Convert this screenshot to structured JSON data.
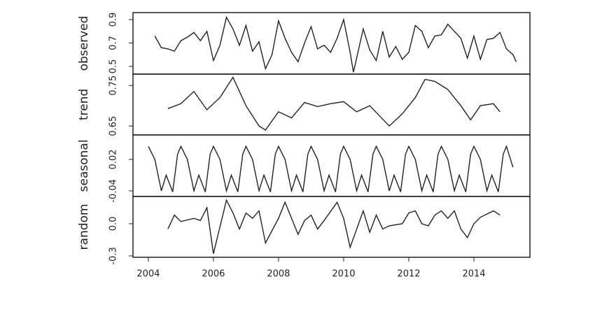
{
  "chart_data": [
    {
      "type": "line",
      "ylabel": "observed",
      "color": "#222",
      "xlim": [
        2003.53,
        2015.72
      ],
      "ylim": [
        0.434,
        0.96
      ],
      "yticks": [
        0.5,
        0.7,
        0.9
      ],
      "x": [
        2004.2,
        2004.4,
        2004.6,
        2004.8,
        2005.0,
        2005.2,
        2005.4,
        2005.6,
        2005.8,
        2006.0,
        2006.2,
        2006.4,
        2006.6,
        2006.8,
        2007.0,
        2007.2,
        2007.4,
        2007.6,
        2007.8,
        2008.0,
        2008.2,
        2008.4,
        2008.6,
        2008.8,
        2009.0,
        2009.2,
        2009.4,
        2009.6,
        2009.8,
        2010.0,
        2010.2,
        2010.3,
        2010.6,
        2010.8,
        2011.0,
        2011.2,
        2011.4,
        2011.6,
        2011.8,
        2012.0,
        2012.2,
        2012.4,
        2012.6,
        2012.8,
        2013.0,
        2013.2,
        2013.4,
        2013.6,
        2013.8,
        2014.0,
        2014.2,
        2014.4,
        2014.6,
        2014.8,
        2015.0,
        2015.2,
        2015.3
      ],
      "values": [
        0.76,
        0.66,
        0.65,
        0.63,
        0.72,
        0.75,
        0.79,
        0.72,
        0.8,
        0.55,
        0.68,
        0.92,
        0.82,
        0.68,
        0.85,
        0.63,
        0.71,
        0.48,
        0.6,
        0.89,
        0.74,
        0.62,
        0.54,
        0.7,
        0.84,
        0.65,
        0.68,
        0.62,
        0.74,
        0.9,
        0.62,
        0.45,
        0.82,
        0.64,
        0.55,
        0.8,
        0.58,
        0.67,
        0.56,
        0.62,
        0.85,
        0.8,
        0.66,
        0.76,
        0.77,
        0.86,
        0.8,
        0.74,
        0.57,
        0.76,
        0.56,
        0.73,
        0.74,
        0.79,
        0.65,
        0.6,
        0.54
      ]
    },
    {
      "type": "line",
      "ylabel": "trend",
      "color": "#222",
      "xlim": [
        2003.53,
        2015.72
      ],
      "ylim": [
        0.628,
        0.778
      ],
      "yticks": [
        0.65,
        0.75
      ],
      "x": [
        2004.6,
        2005.0,
        2005.4,
        2005.8,
        2006.2,
        2006.6,
        2007.0,
        2007.4,
        2007.6,
        2008.0,
        2008.4,
        2008.8,
        2009.2,
        2009.6,
        2010.0,
        2010.4,
        2010.8,
        2011.4,
        2011.8,
        2012.2,
        2012.5,
        2012.8,
        2013.2,
        2013.6,
        2013.9,
        2014.2,
        2014.6,
        2014.8
      ],
      "values": [
        0.693,
        0.705,
        0.735,
        0.69,
        0.72,
        0.77,
        0.7,
        0.65,
        0.64,
        0.685,
        0.67,
        0.708,
        0.698,
        0.705,
        0.71,
        0.685,
        0.7,
        0.65,
        0.68,
        0.72,
        0.765,
        0.76,
        0.74,
        0.7,
        0.665,
        0.7,
        0.705,
        0.685
      ]
    },
    {
      "type": "line",
      "ylabel": "seasonal",
      "color": "#222",
      "xlim": [
        2003.53,
        2015.72
      ],
      "ylim": [
        -0.0507,
        0.0667
      ],
      "yticks": [
        -0.04,
        0.02
      ],
      "x": [
        2004.0,
        2004.2,
        2004.4,
        2004.55,
        2004.75,
        2004.9,
        2005.0,
        2005.2,
        2005.4,
        2005.55,
        2005.75,
        2005.9,
        2006.0,
        2006.2,
        2006.4,
        2006.55,
        2006.75,
        2006.9,
        2007.0,
        2007.2,
        2007.4,
        2007.55,
        2007.75,
        2007.9,
        2008.0,
        2008.2,
        2008.4,
        2008.55,
        2008.75,
        2008.9,
        2009.0,
        2009.2,
        2009.4,
        2009.55,
        2009.75,
        2009.9,
        2010.0,
        2010.2,
        2010.4,
        2010.55,
        2010.75,
        2010.9,
        2011.0,
        2011.2,
        2011.4,
        2011.55,
        2011.75,
        2011.9,
        2012.0,
        2012.2,
        2012.4,
        2012.55,
        2012.75,
        2012.9,
        2013.0,
        2013.2,
        2013.4,
        2013.55,
        2013.75,
        2013.9,
        2014.0,
        2014.2,
        2014.4,
        2014.55,
        2014.75,
        2014.9,
        2015.0,
        2015.2
      ],
      "values": [
        0.045,
        0.02,
        -0.04,
        -0.01,
        -0.042,
        0.03,
        0.045,
        0.02,
        -0.04,
        -0.01,
        -0.042,
        0.03,
        0.045,
        0.02,
        -0.04,
        -0.01,
        -0.042,
        0.03,
        0.045,
        0.02,
        -0.04,
        -0.01,
        -0.042,
        0.03,
        0.045,
        0.02,
        -0.04,
        -0.01,
        -0.042,
        0.03,
        0.045,
        0.02,
        -0.04,
        -0.01,
        -0.042,
        0.03,
        0.045,
        0.02,
        -0.04,
        -0.01,
        -0.042,
        0.03,
        0.045,
        0.02,
        -0.04,
        -0.01,
        -0.042,
        0.03,
        0.045,
        0.02,
        -0.04,
        -0.01,
        -0.042,
        0.03,
        0.045,
        0.02,
        -0.04,
        -0.01,
        -0.042,
        0.03,
        0.045,
        0.02,
        -0.04,
        -0.01,
        -0.042,
        0.03,
        0.045,
        0.005
      ]
    },
    {
      "type": "line",
      "ylabel": "random",
      "color": "#222",
      "xlim": [
        2003.53,
        2015.72
      ],
      "ylim": [
        -0.313,
        0.254
      ],
      "yticks": [
        -0.3,
        {
          "value": 0,
          "label": "0.0"
        }
      ],
      "xticks": [
        2004,
        2006,
        2008,
        2010,
        2012,
        2014
      ],
      "x": [
        2004.6,
        2004.8,
        2005.0,
        2005.4,
        2005.6,
        2005.8,
        2006.0,
        2006.4,
        2006.6,
        2006.8,
        2007.0,
        2007.2,
        2007.4,
        2007.6,
        2008.0,
        2008.2,
        2008.4,
        2008.6,
        2008.8,
        2009.0,
        2009.2,
        2009.4,
        2009.8,
        2010.0,
        2010.2,
        2010.6,
        2010.8,
        2011.0,
        2011.2,
        2011.4,
        2011.8,
        2012.0,
        2012.2,
        2012.4,
        2012.6,
        2012.8,
        2013.0,
        2013.2,
        2013.4,
        2013.6,
        2013.8,
        2014.0,
        2014.2,
        2014.6,
        2014.8
      ],
      "values": [
        -0.05,
        0.08,
        0.02,
        0.05,
        0.03,
        0.15,
        -0.28,
        0.22,
        0.1,
        -0.05,
        0.1,
        0.05,
        0.12,
        -0.18,
        0.05,
        0.2,
        0.05,
        -0.1,
        0.03,
        0.08,
        -0.05,
        0.03,
        0.2,
        0.05,
        -0.22,
        0.12,
        -0.08,
        0.08,
        -0.05,
        -0.02,
        0.0,
        0.1,
        0.12,
        0.0,
        -0.02,
        0.08,
        0.12,
        0.05,
        0.12,
        -0.05,
        -0.13,
        0.0,
        0.06,
        0.12,
        0.08
      ]
    }
  ]
}
